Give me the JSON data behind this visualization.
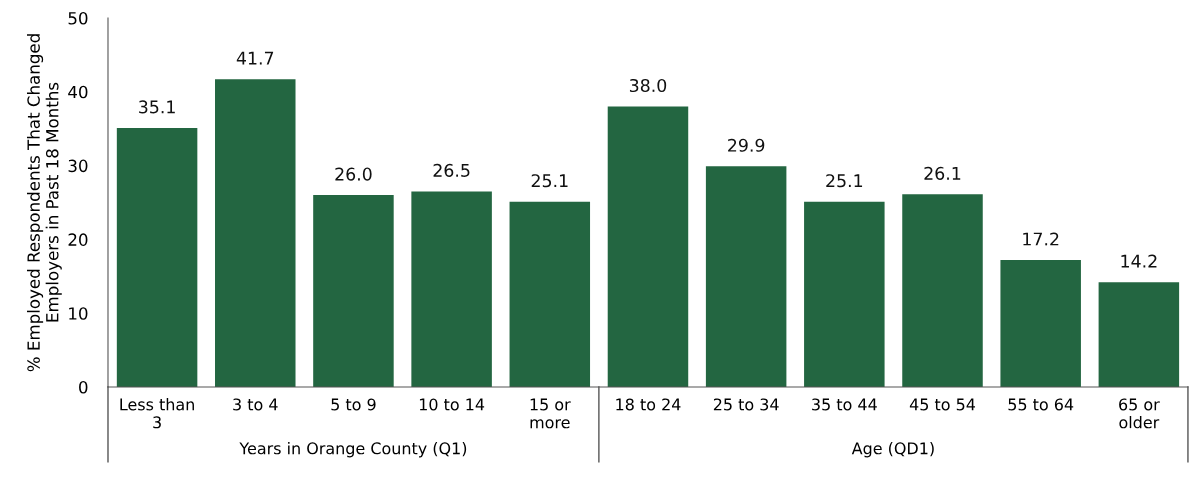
{
  "chart_data": {
    "type": "bar",
    "ylabel": "% Employed Respondents That Changed\nEmployers in Past 18 Months",
    "categories": [
      "Less than\n3",
      "3 to 4",
      "5 to 9",
      "10 to 14",
      "15 or\nmore",
      "18 to 24",
      "25 to 34",
      "35 to 44",
      "45 to 54",
      "55 to 64",
      "65 or\nolder"
    ],
    "values": [
      35.1,
      41.7,
      26.0,
      26.5,
      25.1,
      38.0,
      29.9,
      25.1,
      26.1,
      17.2,
      14.2
    ],
    "color": "#236641",
    "ylim": [
      0,
      50
    ],
    "yticks": [
      0,
      10,
      20,
      30,
      40,
      50
    ],
    "value_labels": [
      "35.1",
      "41.7",
      "26.0",
      "26.5",
      "25.1",
      "38.0",
      "29.9",
      "25.1",
      "26.1",
      "17.2",
      "14.2"
    ],
    "grid": false,
    "legend": false,
    "annotations": [
      "Years in Orange County (Q1)",
      "Age (QD1)"
    ]
  }
}
